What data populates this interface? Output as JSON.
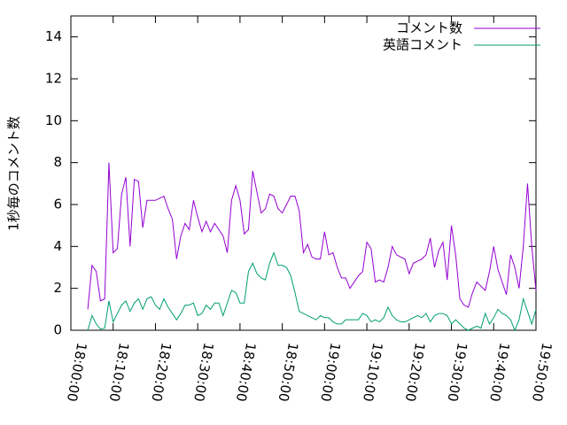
{
  "chart_data": {
    "type": "line",
    "ylabel": "1秒毎のコメント数",
    "x": [
      "18:04:00",
      "18:05:00",
      "18:06:00",
      "18:07:00",
      "18:08:00",
      "18:09:00",
      "18:10:00",
      "18:11:00",
      "18:12:00",
      "18:13:00",
      "18:14:00",
      "18:15:00",
      "18:16:00",
      "18:17:00",
      "18:18:00",
      "18:19:00",
      "18:20:00",
      "18:21:00",
      "18:22:00",
      "18:23:00",
      "18:24:00",
      "18:25:00",
      "18:26:00",
      "18:27:00",
      "18:28:00",
      "18:29:00",
      "18:30:00",
      "18:31:00",
      "18:32:00",
      "18:33:00",
      "18:34:00",
      "18:35:00",
      "18:36:00",
      "18:37:00",
      "18:38:00",
      "18:39:00",
      "18:40:00",
      "18:41:00",
      "18:42:00",
      "18:43:00",
      "18:44:00",
      "18:45:00",
      "18:46:00",
      "18:47:00",
      "18:48:00",
      "18:49:00",
      "18:50:00",
      "18:51:00",
      "18:52:00",
      "18:53:00",
      "18:54:00",
      "18:55:00",
      "18:56:00",
      "18:57:00",
      "18:58:00",
      "18:59:00",
      "19:00:00",
      "19:01:00",
      "19:02:00",
      "19:03:00",
      "19:04:00",
      "19:05:00",
      "19:06:00",
      "19:07:00",
      "19:08:00",
      "19:09:00",
      "19:10:00",
      "19:11:00",
      "19:12:00",
      "19:13:00",
      "19:14:00",
      "19:15:00",
      "19:16:00",
      "19:17:00",
      "19:18:00",
      "19:19:00",
      "19:20:00",
      "19:21:00",
      "19:22:00",
      "19:23:00",
      "19:24:00",
      "19:25:00",
      "19:26:00",
      "19:27:00",
      "19:28:00",
      "19:29:00",
      "19:30:00",
      "19:31:00",
      "19:32:00",
      "19:33:00",
      "19:34:00",
      "19:35:00",
      "19:36:00",
      "19:37:00",
      "19:38:00",
      "19:39:00",
      "19:40:00",
      "19:41:00",
      "19:42:00",
      "19:43:00",
      "19:44:00",
      "19:45:00",
      "19:46:00",
      "19:47:00",
      "19:48:00",
      "19:49:00",
      "19:50:00"
    ],
    "series": [
      {
        "name": "コメント数",
        "color": "#9400d3",
        "values": [
          1.0,
          3.1,
          2.8,
          1.4,
          1.5,
          8.0,
          3.7,
          3.9,
          6.5,
          7.3,
          4.0,
          7.2,
          7.1,
          4.9,
          6.2,
          6.2,
          6.2,
          6.3,
          6.4,
          5.8,
          5.3,
          3.4,
          4.5,
          5.1,
          4.8,
          6.2,
          5.4,
          4.7,
          5.2,
          4.7,
          5.1,
          4.8,
          4.5,
          3.7,
          6.2,
          6.9,
          6.2,
          4.6,
          4.8,
          7.6,
          6.6,
          5.6,
          5.8,
          6.5,
          6.4,
          5.8,
          5.6,
          6.0,
          6.4,
          6.4,
          5.7,
          3.7,
          4.1,
          3.5,
          3.4,
          3.4,
          4.7,
          3.6,
          3.7,
          3.0,
          2.5,
          2.5,
          2.0,
          2.3,
          2.6,
          2.8,
          4.2,
          3.9,
          2.3,
          2.4,
          2.3,
          3.0,
          4.0,
          3.6,
          3.5,
          3.4,
          2.7,
          3.2,
          3.3,
          3.4,
          3.6,
          4.4,
          3.0,
          3.8,
          4.2,
          2.4,
          5.0,
          3.6,
          1.5,
          1.2,
          1.1,
          1.8,
          2.3,
          2.1,
          1.9,
          2.8,
          4.0,
          2.9,
          2.3,
          1.7,
          3.6,
          3.0,
          2.0,
          4.0,
          7.0,
          4.0,
          1.9
        ]
      },
      {
        "name": "英語コメント",
        "color": "#009e73",
        "values": [
          0.0,
          0.7,
          0.3,
          0.05,
          0.1,
          1.4,
          0.4,
          0.8,
          1.2,
          1.4,
          0.9,
          1.3,
          1.5,
          1.0,
          1.5,
          1.6,
          1.2,
          1.0,
          1.5,
          1.1,
          0.8,
          0.5,
          0.8,
          1.2,
          1.2,
          1.3,
          0.7,
          0.8,
          1.2,
          1.0,
          1.3,
          1.3,
          0.7,
          1.3,
          1.9,
          1.8,
          1.3,
          1.3,
          2.8,
          3.2,
          2.7,
          2.5,
          2.4,
          3.2,
          3.7,
          3.1,
          3.1,
          3.0,
          2.6,
          1.8,
          0.9,
          0.8,
          0.7,
          0.6,
          0.5,
          0.7,
          0.6,
          0.6,
          0.4,
          0.3,
          0.3,
          0.5,
          0.5,
          0.5,
          0.5,
          0.8,
          0.7,
          0.4,
          0.5,
          0.4,
          0.6,
          1.1,
          0.7,
          0.5,
          0.4,
          0.4,
          0.5,
          0.6,
          0.7,
          0.6,
          0.8,
          0.4,
          0.7,
          0.8,
          0.8,
          0.7,
          0.3,
          0.5,
          0.3,
          0.1,
          0.0,
          0.1,
          0.2,
          0.1,
          0.8,
          0.3,
          0.6,
          1.0,
          0.8,
          0.7,
          0.5,
          0.0,
          0.5,
          1.5,
          0.9,
          0.3,
          1.0
        ]
      }
    ],
    "xlim": [
      "18:00:00",
      "19:50:00"
    ],
    "xticks": [
      "18:00:00",
      "18:10:00",
      "18:20:00",
      "18:30:00",
      "18:40:00",
      "18:50:00",
      "19:00:00",
      "19:10:00",
      "19:20:00",
      "19:30:00",
      "19:40:00",
      "19:50:00"
    ],
    "ylim": [
      0,
      15
    ],
    "yticks": [
      0,
      2,
      4,
      6,
      8,
      10,
      12,
      14
    ],
    "legend": "top-right"
  }
}
